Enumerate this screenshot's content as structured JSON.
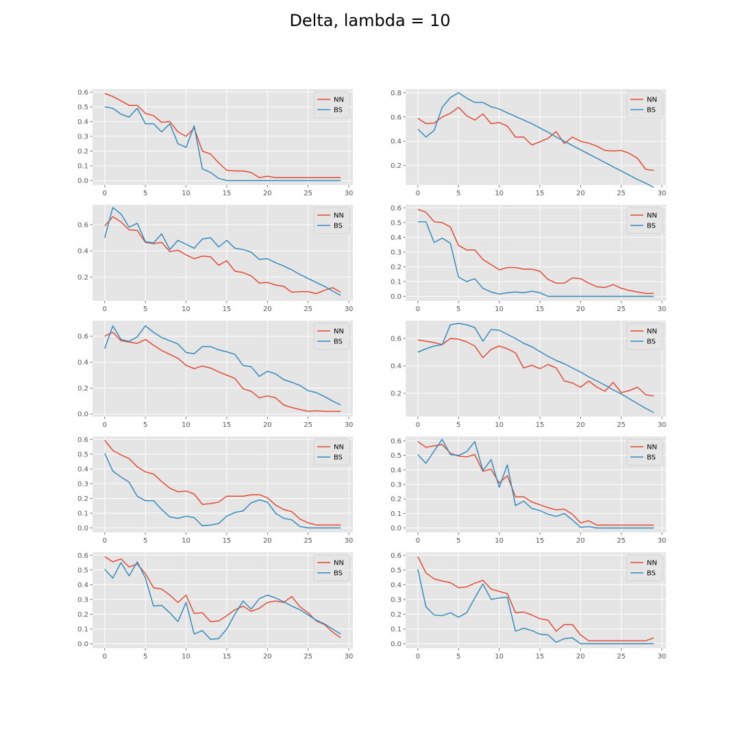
{
  "title": "Delta, lambda = 10",
  "colors": {
    "NN": "#e24a33",
    "BS": "#348abd",
    "panel_bg": "#e5e5e5",
    "grid": "#ffffff"
  },
  "chart_data": [
    {
      "type": "line",
      "xlim": [
        -1.5,
        30.5
      ],
      "ylim": [
        -0.03,
        0.62
      ],
      "xticks": [
        0,
        5,
        10,
        15,
        20,
        25,
        30
      ],
      "yticks": [
        0.0,
        0.1,
        0.2,
        0.3,
        0.4,
        0.5,
        0.6
      ],
      "legend": "top-right",
      "series": [
        {
          "name": "NN",
          "values": [
            0.59,
            0.57,
            0.54,
            0.51,
            0.51,
            0.455,
            0.44,
            0.395,
            0.4,
            0.33,
            0.3,
            0.355,
            0.2,
            0.18,
            0.12,
            0.07,
            0.065,
            0.065,
            0.055,
            0.02,
            0.03,
            0.02,
            0.02,
            0.02,
            0.02,
            0.02,
            0.02,
            0.02,
            0.02,
            0.02
          ]
        },
        {
          "name": "BS",
          "values": [
            0.5,
            0.49,
            0.45,
            0.43,
            0.49,
            0.385,
            0.385,
            0.33,
            0.385,
            0.25,
            0.225,
            0.37,
            0.08,
            0.055,
            0.015,
            0.0,
            0.0,
            0.0,
            0.0,
            0.0,
            0.0,
            0.0,
            0.0,
            0.0,
            0.0,
            0.0,
            0.0,
            0.0,
            0.0,
            0.0
          ]
        }
      ]
    },
    {
      "type": "line",
      "xlim": [
        -1.5,
        30.5
      ],
      "ylim": [
        0.04,
        0.83
      ],
      "xticks": [
        0,
        5,
        10,
        15,
        20,
        25,
        30
      ],
      "yticks": [
        0.2,
        0.4,
        0.6,
        0.8
      ],
      "legend": "top-right",
      "series": [
        {
          "name": "NN",
          "values": [
            0.59,
            0.545,
            0.55,
            0.6,
            0.63,
            0.68,
            0.61,
            0.575,
            0.625,
            0.545,
            0.555,
            0.525,
            0.435,
            0.435,
            0.37,
            0.395,
            0.425,
            0.48,
            0.38,
            0.435,
            0.4,
            0.385,
            0.36,
            0.325,
            0.32,
            0.325,
            0.3,
            0.26,
            0.17,
            0.16
          ]
        },
        {
          "name": "BS",
          "values": [
            0.5,
            0.435,
            0.49,
            0.68,
            0.76,
            0.8,
            0.755,
            0.72,
            0.72,
            0.685,
            0.665,
            0.635,
            0.605,
            0.575,
            0.545,
            0.51,
            0.475,
            0.435,
            0.4,
            0.365,
            0.33,
            0.295,
            0.26,
            0.225,
            0.19,
            0.155,
            0.12,
            0.085,
            0.055,
            0.02
          ]
        }
      ]
    },
    {
      "type": "line",
      "xlim": [
        -1.5,
        30.5
      ],
      "ylim": [
        0.02,
        0.75
      ],
      "xticks": [
        0,
        5,
        10,
        15,
        20,
        25,
        30
      ],
      "yticks": [
        0.2,
        0.4,
        0.6
      ],
      "legend": "top-right",
      "series": [
        {
          "name": "NN",
          "values": [
            0.59,
            0.66,
            0.62,
            0.56,
            0.555,
            0.465,
            0.455,
            0.465,
            0.395,
            0.405,
            0.37,
            0.34,
            0.36,
            0.355,
            0.29,
            0.325,
            0.245,
            0.235,
            0.21,
            0.155,
            0.16,
            0.14,
            0.13,
            0.085,
            0.09,
            0.09,
            0.075,
            0.1,
            0.12,
            0.085
          ]
        },
        {
          "name": "BS",
          "values": [
            0.5,
            0.73,
            0.68,
            0.58,
            0.61,
            0.47,
            0.46,
            0.53,
            0.41,
            0.48,
            0.45,
            0.42,
            0.49,
            0.5,
            0.43,
            0.48,
            0.42,
            0.41,
            0.39,
            0.335,
            0.34,
            0.31,
            0.285,
            0.255,
            0.22,
            0.19,
            0.16,
            0.13,
            0.095,
            0.06
          ]
        }
      ]
    },
    {
      "type": "line",
      "xlim": [
        -1.5,
        30.5
      ],
      "ylim": [
        -0.03,
        0.62
      ],
      "xticks": [
        0,
        5,
        10,
        15,
        20,
        25,
        30
      ],
      "yticks": [
        0.0,
        0.1,
        0.2,
        0.3,
        0.4,
        0.5,
        0.6
      ],
      "legend": "top-right",
      "series": [
        {
          "name": "NN",
          "values": [
            0.59,
            0.57,
            0.505,
            0.5,
            0.47,
            0.345,
            0.315,
            0.315,
            0.25,
            0.215,
            0.18,
            0.195,
            0.195,
            0.185,
            0.185,
            0.17,
            0.115,
            0.09,
            0.09,
            0.125,
            0.12,
            0.09,
            0.065,
            0.06,
            0.08,
            0.055,
            0.04,
            0.03,
            0.02,
            0.02
          ]
        },
        {
          "name": "BS",
          "values": [
            0.505,
            0.505,
            0.365,
            0.395,
            0.36,
            0.13,
            0.1,
            0.12,
            0.055,
            0.03,
            0.015,
            0.025,
            0.03,
            0.025,
            0.035,
            0.025,
            0.0,
            0.0,
            0.0,
            0.0,
            0.0,
            0.0,
            0.0,
            0.0,
            0.0,
            0.0,
            0.0,
            0.0,
            0.0,
            0.0
          ]
        }
      ]
    },
    {
      "type": "line",
      "xlim": [
        -1.5,
        30.5
      ],
      "ylim": [
        -0.02,
        0.72
      ],
      "xticks": [
        0,
        5,
        10,
        15,
        20,
        25,
        30
      ],
      "yticks": [
        0.0,
        0.2,
        0.4,
        0.6
      ],
      "legend": "top-right",
      "series": [
        {
          "name": "NN",
          "values": [
            0.6,
            0.63,
            0.565,
            0.555,
            0.545,
            0.575,
            0.53,
            0.49,
            0.46,
            0.43,
            0.375,
            0.35,
            0.37,
            0.355,
            0.325,
            0.3,
            0.275,
            0.195,
            0.175,
            0.125,
            0.14,
            0.125,
            0.07,
            0.05,
            0.035,
            0.02,
            0.025,
            0.02,
            0.02,
            0.02
          ]
        },
        {
          "name": "BS",
          "values": [
            0.505,
            0.68,
            0.575,
            0.56,
            0.595,
            0.68,
            0.63,
            0.59,
            0.565,
            0.54,
            0.475,
            0.465,
            0.52,
            0.52,
            0.495,
            0.48,
            0.46,
            0.375,
            0.365,
            0.29,
            0.33,
            0.31,
            0.265,
            0.245,
            0.22,
            0.18,
            0.165,
            0.135,
            0.1,
            0.07
          ]
        }
      ]
    },
    {
      "type": "line",
      "xlim": [
        -1.5,
        30.5
      ],
      "ylim": [
        0.03,
        0.73
      ],
      "xticks": [
        0,
        5,
        10,
        15,
        20,
        25,
        30
      ],
      "yticks": [
        0.2,
        0.4,
        0.6
      ],
      "legend": "top-right",
      "series": [
        {
          "name": "NN",
          "values": [
            0.59,
            0.58,
            0.57,
            0.555,
            0.6,
            0.595,
            0.575,
            0.545,
            0.46,
            0.52,
            0.545,
            0.525,
            0.495,
            0.385,
            0.405,
            0.38,
            0.41,
            0.385,
            0.29,
            0.275,
            0.245,
            0.29,
            0.245,
            0.215,
            0.28,
            0.205,
            0.22,
            0.245,
            0.19,
            0.18
          ]
        },
        {
          "name": "BS",
          "values": [
            0.5,
            0.525,
            0.545,
            0.555,
            0.7,
            0.71,
            0.7,
            0.68,
            0.58,
            0.665,
            0.66,
            0.63,
            0.6,
            0.565,
            0.54,
            0.505,
            0.47,
            0.44,
            0.415,
            0.385,
            0.355,
            0.32,
            0.29,
            0.26,
            0.225,
            0.195,
            0.16,
            0.125,
            0.09,
            0.06
          ]
        }
      ]
    },
    {
      "type": "line",
      "xlim": [
        -1.5,
        30.5
      ],
      "ylim": [
        -0.03,
        0.62
      ],
      "xticks": [
        0,
        5,
        10,
        15,
        20,
        25,
        30
      ],
      "yticks": [
        0.0,
        0.1,
        0.2,
        0.3,
        0.4,
        0.5,
        0.6
      ],
      "legend": "top-right",
      "series": [
        {
          "name": "NN",
          "values": [
            0.595,
            0.525,
            0.495,
            0.47,
            0.415,
            0.38,
            0.365,
            0.315,
            0.27,
            0.245,
            0.25,
            0.23,
            0.16,
            0.165,
            0.175,
            0.215,
            0.215,
            0.215,
            0.225,
            0.225,
            0.205,
            0.155,
            0.125,
            0.11,
            0.06,
            0.035,
            0.02,
            0.02,
            0.02,
            0.02
          ]
        },
        {
          "name": "BS",
          "values": [
            0.505,
            0.385,
            0.345,
            0.31,
            0.215,
            0.185,
            0.185,
            0.125,
            0.075,
            0.065,
            0.08,
            0.07,
            0.015,
            0.02,
            0.03,
            0.08,
            0.105,
            0.115,
            0.17,
            0.19,
            0.175,
            0.1,
            0.065,
            0.055,
            0.01,
            0.0,
            0.0,
            0.0,
            0.0,
            0.0
          ]
        }
      ]
    },
    {
      "type": "line",
      "xlim": [
        -1.5,
        30.5
      ],
      "ylim": [
        -0.03,
        0.63
      ],
      "xticks": [
        0,
        5,
        10,
        15,
        20,
        25,
        30
      ],
      "yticks": [
        0.0,
        0.1,
        0.2,
        0.3,
        0.4,
        0.5,
        0.6
      ],
      "legend": "top-right",
      "series": [
        {
          "name": "NN",
          "values": [
            0.595,
            0.555,
            0.565,
            0.575,
            0.515,
            0.495,
            0.49,
            0.505,
            0.39,
            0.405,
            0.31,
            0.36,
            0.215,
            0.215,
            0.18,
            0.16,
            0.14,
            0.125,
            0.13,
            0.095,
            0.035,
            0.05,
            0.02,
            0.02,
            0.02,
            0.02,
            0.02,
            0.02,
            0.02,
            0.02
          ]
        },
        {
          "name": "BS",
          "values": [
            0.505,
            0.445,
            0.53,
            0.61,
            0.505,
            0.5,
            0.525,
            0.595,
            0.395,
            0.47,
            0.28,
            0.435,
            0.155,
            0.185,
            0.135,
            0.12,
            0.095,
            0.08,
            0.1,
            0.055,
            0.005,
            0.01,
            0.0,
            0.0,
            0.0,
            0.0,
            0.0,
            0.0,
            0.0,
            0.0
          ]
        }
      ]
    },
    {
      "type": "line",
      "xlim": [
        -1.5,
        30.5
      ],
      "ylim": [
        -0.03,
        0.62
      ],
      "xticks": [
        0,
        5,
        10,
        15,
        20,
        25,
        30
      ],
      "yticks": [
        0.0,
        0.1,
        0.2,
        0.3,
        0.4,
        0.5,
        0.6
      ],
      "legend": "top-right",
      "series": [
        {
          "name": "NN",
          "values": [
            0.59,
            0.555,
            0.575,
            0.52,
            0.54,
            0.475,
            0.38,
            0.37,
            0.33,
            0.28,
            0.33,
            0.205,
            0.21,
            0.15,
            0.155,
            0.19,
            0.23,
            0.255,
            0.22,
            0.24,
            0.28,
            0.29,
            0.28,
            0.32,
            0.25,
            0.21,
            0.155,
            0.13,
            0.08,
            0.04
          ]
        },
        {
          "name": "BS",
          "values": [
            0.505,
            0.445,
            0.55,
            0.46,
            0.555,
            0.445,
            0.255,
            0.26,
            0.21,
            0.15,
            0.28,
            0.065,
            0.09,
            0.03,
            0.035,
            0.1,
            0.2,
            0.29,
            0.235,
            0.305,
            0.33,
            0.31,
            0.285,
            0.255,
            0.23,
            0.195,
            0.16,
            0.135,
            0.1,
            0.065
          ]
        }
      ]
    },
    {
      "type": "line",
      "xlim": [
        -1.5,
        30.5
      ],
      "ylim": [
        -0.03,
        0.62
      ],
      "xticks": [
        0,
        5,
        10,
        15,
        20,
        25,
        30
      ],
      "yticks": [
        0.0,
        0.1,
        0.2,
        0.3,
        0.4,
        0.5,
        0.6
      ],
      "legend": "top-right",
      "series": [
        {
          "name": "NN",
          "values": [
            0.59,
            0.48,
            0.44,
            0.425,
            0.415,
            0.38,
            0.385,
            0.41,
            0.43,
            0.37,
            0.355,
            0.34,
            0.21,
            0.215,
            0.195,
            0.17,
            0.16,
            0.085,
            0.13,
            0.13,
            0.06,
            0.02,
            0.02,
            0.02,
            0.02,
            0.02,
            0.02,
            0.02,
            0.02,
            0.04
          ]
        },
        {
          "name": "BS",
          "values": [
            0.505,
            0.25,
            0.195,
            0.19,
            0.21,
            0.18,
            0.21,
            0.31,
            0.405,
            0.3,
            0.31,
            0.315,
            0.085,
            0.105,
            0.09,
            0.065,
            0.06,
            0.01,
            0.035,
            0.04,
            0.0,
            0.0,
            0.0,
            0.0,
            0.0,
            0.0,
            0.0,
            0.0,
            0.0,
            0.0
          ]
        }
      ]
    }
  ]
}
